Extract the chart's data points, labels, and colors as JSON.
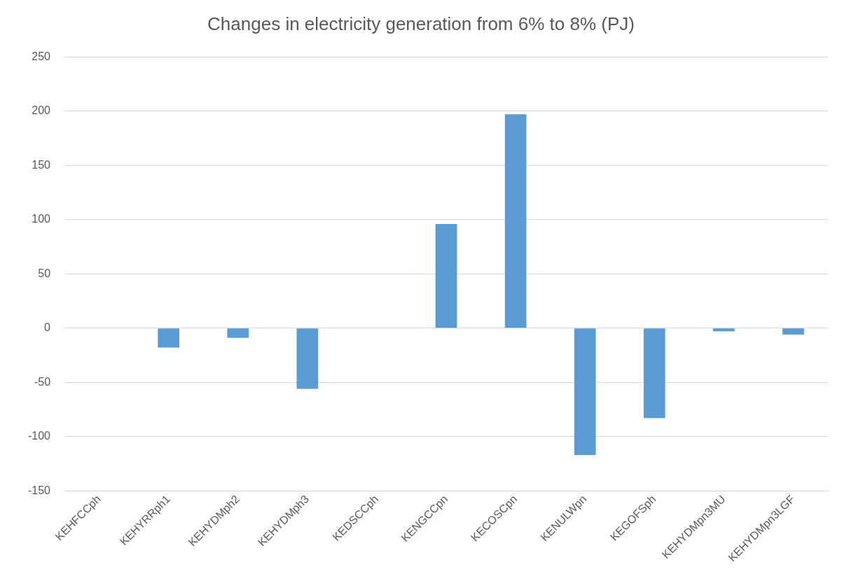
{
  "chart_data": {
    "type": "bar",
    "title": "Changes in electricity generation from 6% to 8% (PJ)",
    "categories": [
      "KEHFCCph",
      "KEHYRRph1",
      "KEHYDMph2",
      "KEHYDMph3",
      "KEDSCCph",
      "KENGCCpn",
      "KECOSCpn",
      "KENULWpn",
      "KEGOFSph",
      "KEHYDMpn3MU",
      "KEHYDMpn3LGF"
    ],
    "values": [
      0,
      -18,
      -9,
      -56,
      0,
      96,
      197,
      -117,
      -83,
      -3,
      -6
    ],
    "color": "#5b9bd5",
    "ylim": [
      -150,
      250
    ],
    "yticks": [
      -150,
      -100,
      -50,
      0,
      50,
      100,
      150,
      200,
      250
    ],
    "grid": "y"
  }
}
